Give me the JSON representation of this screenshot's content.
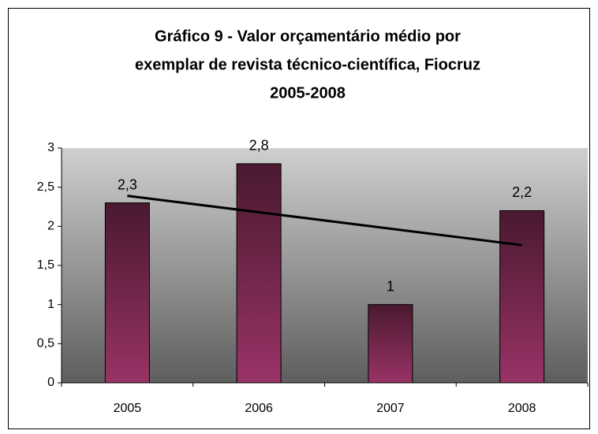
{
  "chart_data": {
    "type": "bar",
    "title": [
      "Gráfico 9 - Valor orçamentário médio por",
      "exemplar de revista técnico-científica, Fiocruz",
      "2005-2008"
    ],
    "categories": [
      "2005",
      "2006",
      "2007",
      "2008"
    ],
    "values": [
      2.3,
      2.8,
      1,
      2.2
    ],
    "value_labels": [
      "2,3",
      "2,8",
      "1",
      "2,2"
    ],
    "color": "#993366",
    "ylim": [
      0,
      3
    ],
    "yticks": [
      0,
      {
        "value": 0.5,
        "label": "0,5"
      },
      1,
      {
        "value": 1.5,
        "label": "1,5"
      },
      2,
      {
        "value": 2.5,
        "label": "2,5"
      },
      3
    ],
    "trendline": "linear"
  }
}
